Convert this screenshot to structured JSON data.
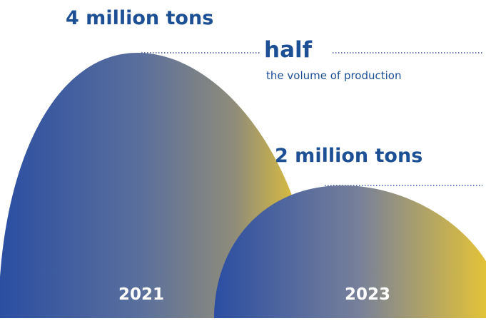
{
  "chart_data": {
    "type": "area",
    "unit": "million tons",
    "categories": [
      "2021",
      "2023"
    ],
    "values": [
      4,
      2
    ],
    "value_labels": [
      "4 million tons",
      "2 million tons"
    ],
    "comparison": {
      "word": "half",
      "caption": "the volume of production"
    },
    "colors": {
      "shape_start": "#2b4ea2",
      "shape_end": "#f1cb2b",
      "text": "#1d4f95",
      "dots": "#2f4f91"
    }
  }
}
